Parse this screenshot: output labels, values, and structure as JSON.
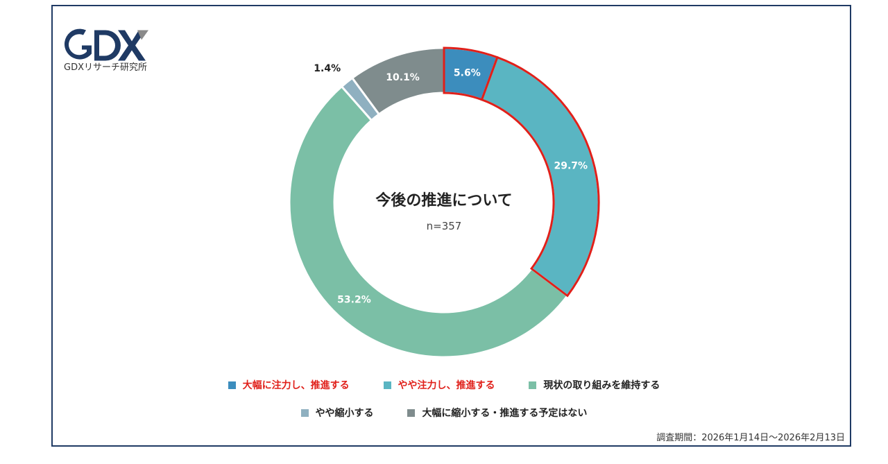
{
  "logo": {
    "mark": "GDX",
    "subtitle": "GDXリサーチ研究所"
  },
  "chart_data": {
    "type": "pie",
    "title": "今後の推進について",
    "subtitle": "n=357",
    "slices": [
      {
        "label": "大幅に注力し、推進する",
        "value": 5.6,
        "display": "5.6%",
        "color": "#3c8dbd",
        "highlight": true
      },
      {
        "label": "やや注力し、推進する",
        "value": 29.7,
        "display": "29.7%",
        "color": "#5ab5c2",
        "highlight": true
      },
      {
        "label": "現状の取り組みを維持する",
        "value": 53.2,
        "display": "53.2%",
        "color": "#7bbfa6",
        "highlight": false
      },
      {
        "label": "やや縮小する",
        "value": 1.4,
        "display": "1.4%",
        "color": "#8fb0c0",
        "highlight": false
      },
      {
        "label": "大幅に縮小する・推進する予定はない",
        "value": 10.1,
        "display": "10.1%",
        "color": "#7f8c8d",
        "highlight": false
      }
    ],
    "highlight_color": "#e0201a",
    "legend_placement": "bottom"
  },
  "footer": {
    "survey_period": "調査期間：2026年1月14日～2026年2月13日"
  }
}
